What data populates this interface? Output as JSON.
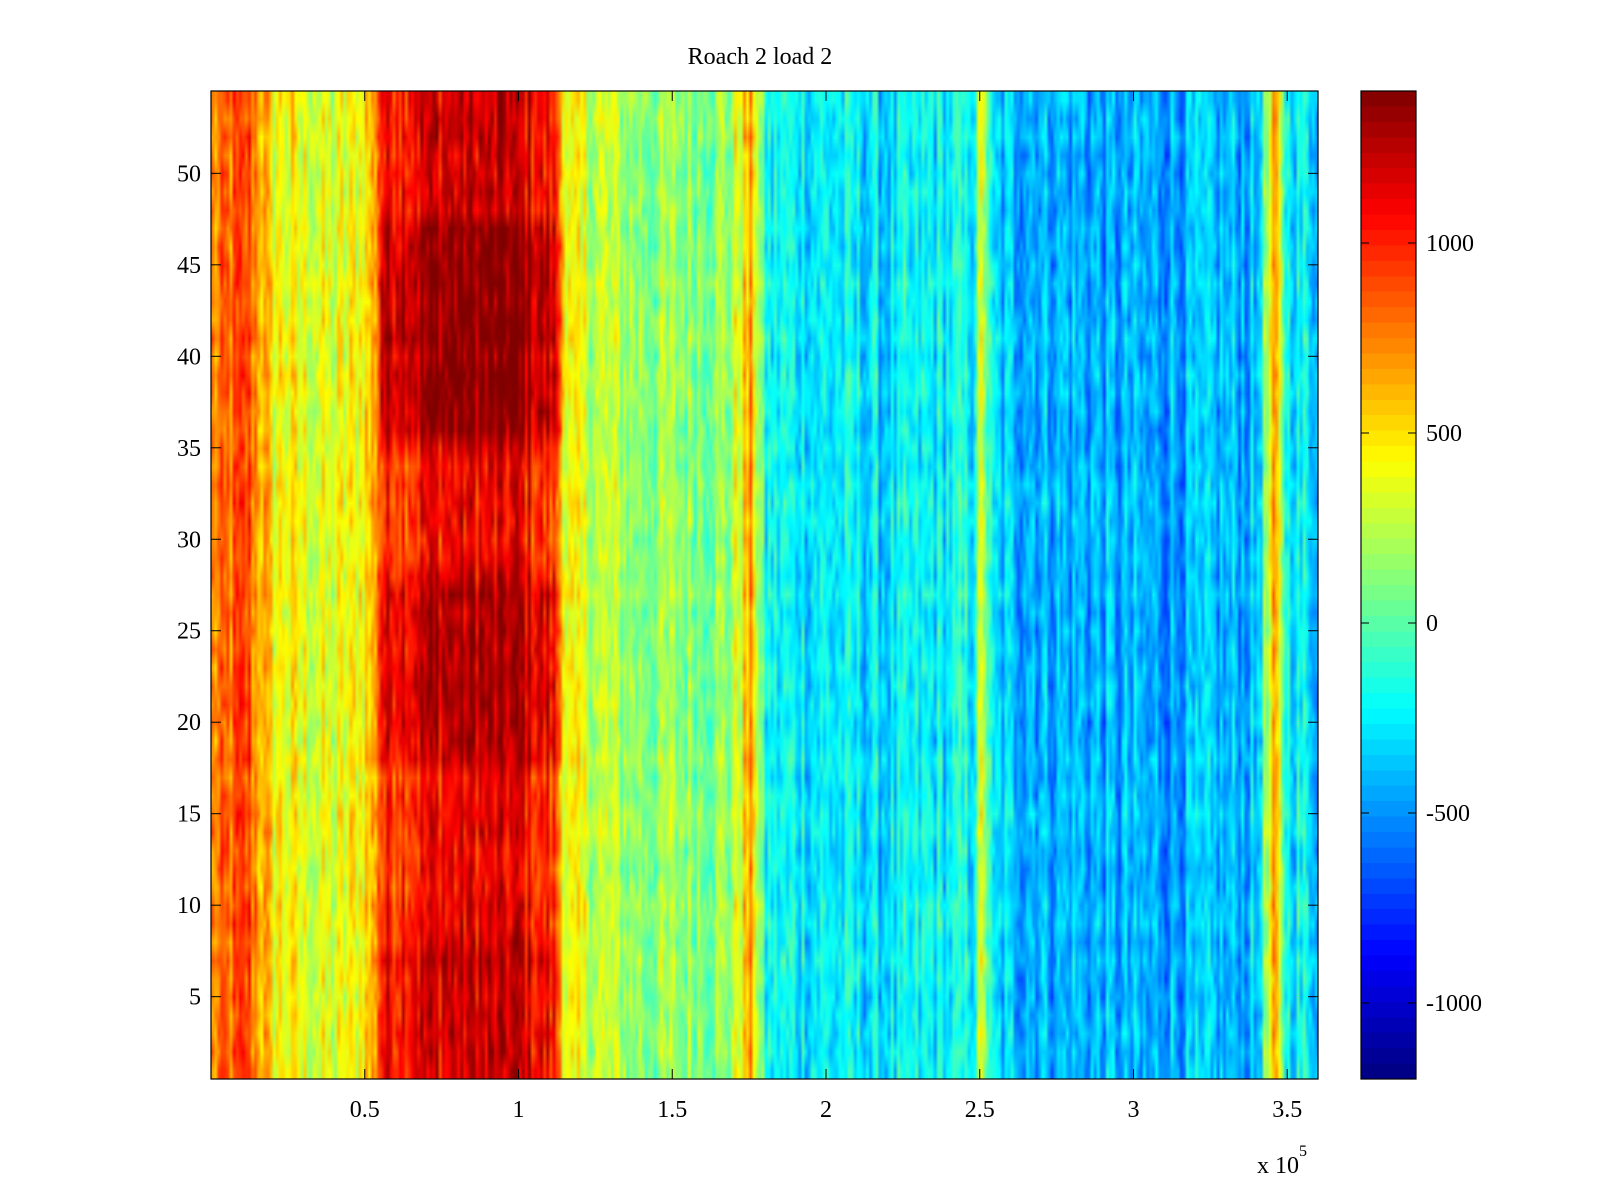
{
  "chart_data": {
    "type": "heatmap",
    "title": "Roach 2 load 2",
    "xlabel": "",
    "ylabel": "",
    "x_exponent_label": "x 10",
    "x_exponent": "5",
    "xlim": [
      0,
      360000
    ],
    "ylim": [
      0.5,
      54.5
    ],
    "x_ticks": [
      0.5,
      1,
      1.5,
      2,
      2.5,
      3,
      3.5
    ],
    "x_tick_labels": [
      "0.5",
      "1",
      "1.5",
      "2",
      "2.5",
      "3",
      "3.5"
    ],
    "y_ticks": [
      5,
      10,
      15,
      20,
      25,
      30,
      35,
      40,
      45,
      50
    ],
    "y_tick_labels": [
      "5",
      "10",
      "15",
      "20",
      "25",
      "30",
      "35",
      "40",
      "45",
      "50"
    ],
    "colorbar": {
      "colormap": "jet",
      "clim": [
        -1200,
        1400
      ],
      "ticks": [
        -1000,
        -500,
        0,
        500,
        1000
      ],
      "tick_labels": [
        "-1000",
        "-500",
        "0",
        "500",
        "1000"
      ]
    },
    "rows": 54,
    "columns": 360,
    "column_profile": [
      {
        "x": 0,
        "value": 700
      },
      {
        "x": 12000,
        "value": 900
      },
      {
        "x": 20000,
        "value": 450
      },
      {
        "x": 40000,
        "value": 300
      },
      {
        "x": 48000,
        "value": 450
      },
      {
        "x": 53000,
        "value": 600
      },
      {
        "x": 55000,
        "value": 1050
      },
      {
        "x": 75000,
        "value": 1200
      },
      {
        "x": 100000,
        "value": 1200
      },
      {
        "x": 112000,
        "value": 1000
      },
      {
        "x": 116000,
        "value": 350
      },
      {
        "x": 140000,
        "value": 150
      },
      {
        "x": 168000,
        "value": 150
      },
      {
        "x": 176000,
        "value": 650
      },
      {
        "x": 180000,
        "value": -200
      },
      {
        "x": 220000,
        "value": -300
      },
      {
        "x": 248000,
        "value": -200
      },
      {
        "x": 251000,
        "value": 400
      },
      {
        "x": 254000,
        "value": -350
      },
      {
        "x": 300000,
        "value": -450
      },
      {
        "x": 340000,
        "value": -400
      },
      {
        "x": 346000,
        "value": 600
      },
      {
        "x": 350000,
        "value": -200
      },
      {
        "x": 360000,
        "value": -300
      }
    ],
    "hot_zone": {
      "x_range": [
        55000,
        115000
      ],
      "peak_rows": [
        36,
        47
      ],
      "peak_value": 1350
    },
    "grid": false,
    "noise_amplitude": 300
  },
  "colors": {
    "background": "#ffffff",
    "axis": "#000000"
  }
}
